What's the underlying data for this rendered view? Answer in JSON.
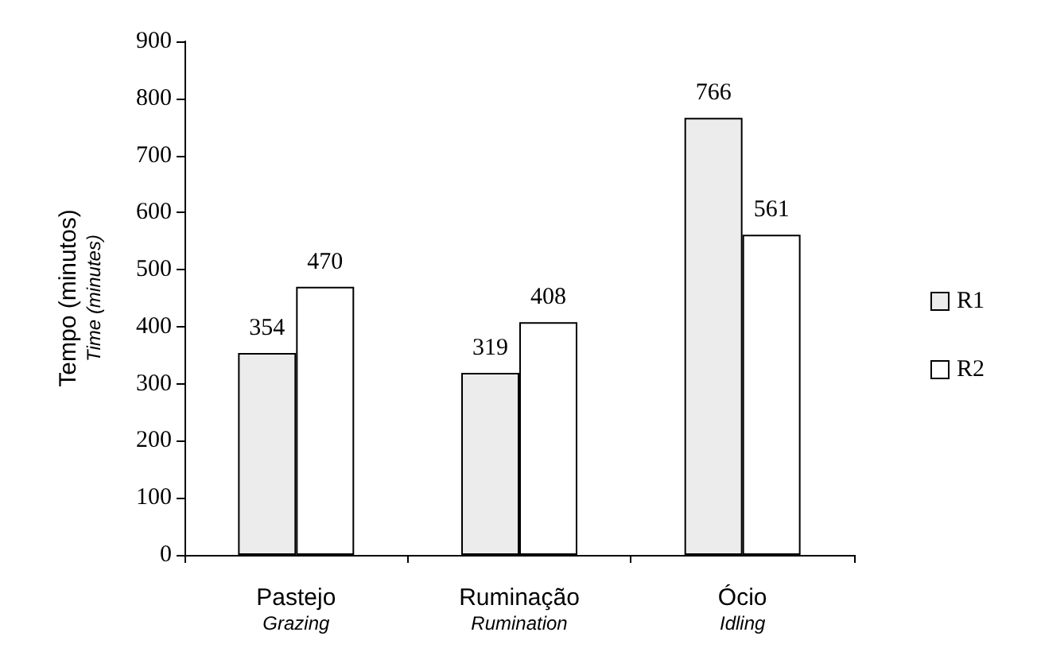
{
  "chart_data": {
    "type": "bar",
    "ylabel": "Tempo (minutos)\nTime (minutes)",
    "categories": [
      "Pastejo\nGrazing",
      "Ruminação\nRumination",
      "Ócio\nIdling"
    ],
    "series": [
      {
        "name": "R1",
        "color": "#ececec",
        "values": [
          354,
          319,
          766
        ]
      },
      {
        "name": "R2",
        "color": "#ffffff",
        "values": [
          470,
          408,
          561
        ]
      }
    ],
    "ylim": [
      0,
      900
    ],
    "yticks": [
      0,
      100,
      200,
      300,
      400,
      500,
      600,
      700,
      800,
      900
    ],
    "grid": false,
    "legend": "right",
    "data_labels": true
  }
}
